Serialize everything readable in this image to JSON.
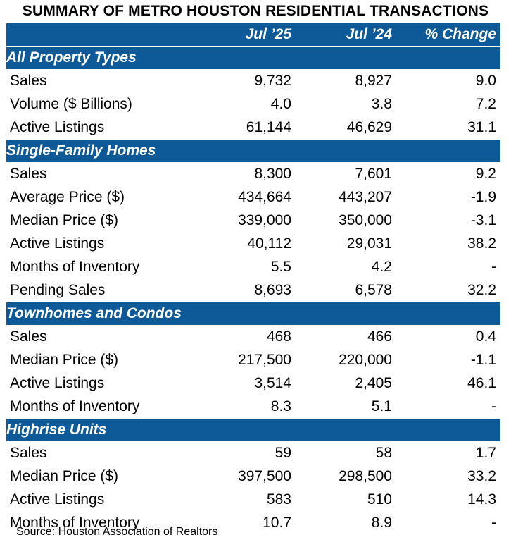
{
  "title": "SUMMARY OF METRO HOUSTON RESIDENTIAL TRANSACTIONS",
  "columns": [
    "Jul ’25",
    "Jul ’24",
    "% Change"
  ],
  "sections": [
    {
      "name": "All Property Types",
      "rows": [
        {
          "label": "Sales",
          "values": [
            "9,732",
            "8,927",
            "9.0"
          ]
        },
        {
          "label": "Volume ($ Billions)",
          "values": [
            "4.0",
            "3.8",
            "7.2"
          ]
        },
        {
          "label": "Active Listings",
          "values": [
            "61,144",
            "46,629",
            "31.1"
          ]
        }
      ]
    },
    {
      "name": "Single-Family Homes",
      "rows": [
        {
          "label": "Sales",
          "values": [
            "8,300",
            "7,601",
            "9.2"
          ]
        },
        {
          "label": "Average Price ($)",
          "values": [
            "434,664",
            "443,207",
            "-1.9"
          ]
        },
        {
          "label": "Median Price ($)",
          "values": [
            "339,000",
            "350,000",
            "-3.1"
          ]
        },
        {
          "label": "Active Listings",
          "values": [
            "40,112",
            "29,031",
            "38.2"
          ]
        },
        {
          "label": "Months of Inventory",
          "values": [
            "5.5",
            "4.2",
            "-"
          ]
        },
        {
          "label": "Pending Sales",
          "values": [
            "8,693",
            "6,578",
            "32.2"
          ]
        }
      ]
    },
    {
      "name": "Townhomes and Condos",
      "rows": [
        {
          "label": "Sales",
          "values": [
            "468",
            "466",
            "0.4"
          ]
        },
        {
          "label": "Median Price ($)",
          "values": [
            "217,500",
            "220,000",
            "-1.1"
          ]
        },
        {
          "label": "Active Listings",
          "values": [
            "3,514",
            "2,405",
            "46.1"
          ]
        },
        {
          "label": "Months of Inventory",
          "values": [
            "8.3",
            "5.1",
            "-"
          ]
        }
      ]
    },
    {
      "name": "Highrise Units",
      "rows": [
        {
          "label": "Sales",
          "values": [
            "59",
            "58",
            "1.7"
          ]
        },
        {
          "label": "Median Price ($)",
          "values": [
            "397,500",
            "298,500",
            "33.2"
          ]
        },
        {
          "label": "Active Listings",
          "values": [
            "583",
            "510",
            "14.3"
          ]
        },
        {
          "label": "Months of Inventory",
          "values": [
            "10.7",
            "8.9",
            "-"
          ]
        }
      ]
    }
  ],
  "source": "Source: Houston Association of Realtors",
  "colors": {
    "header_bg": "#0e5a98",
    "header_text": "#ffffff"
  }
}
